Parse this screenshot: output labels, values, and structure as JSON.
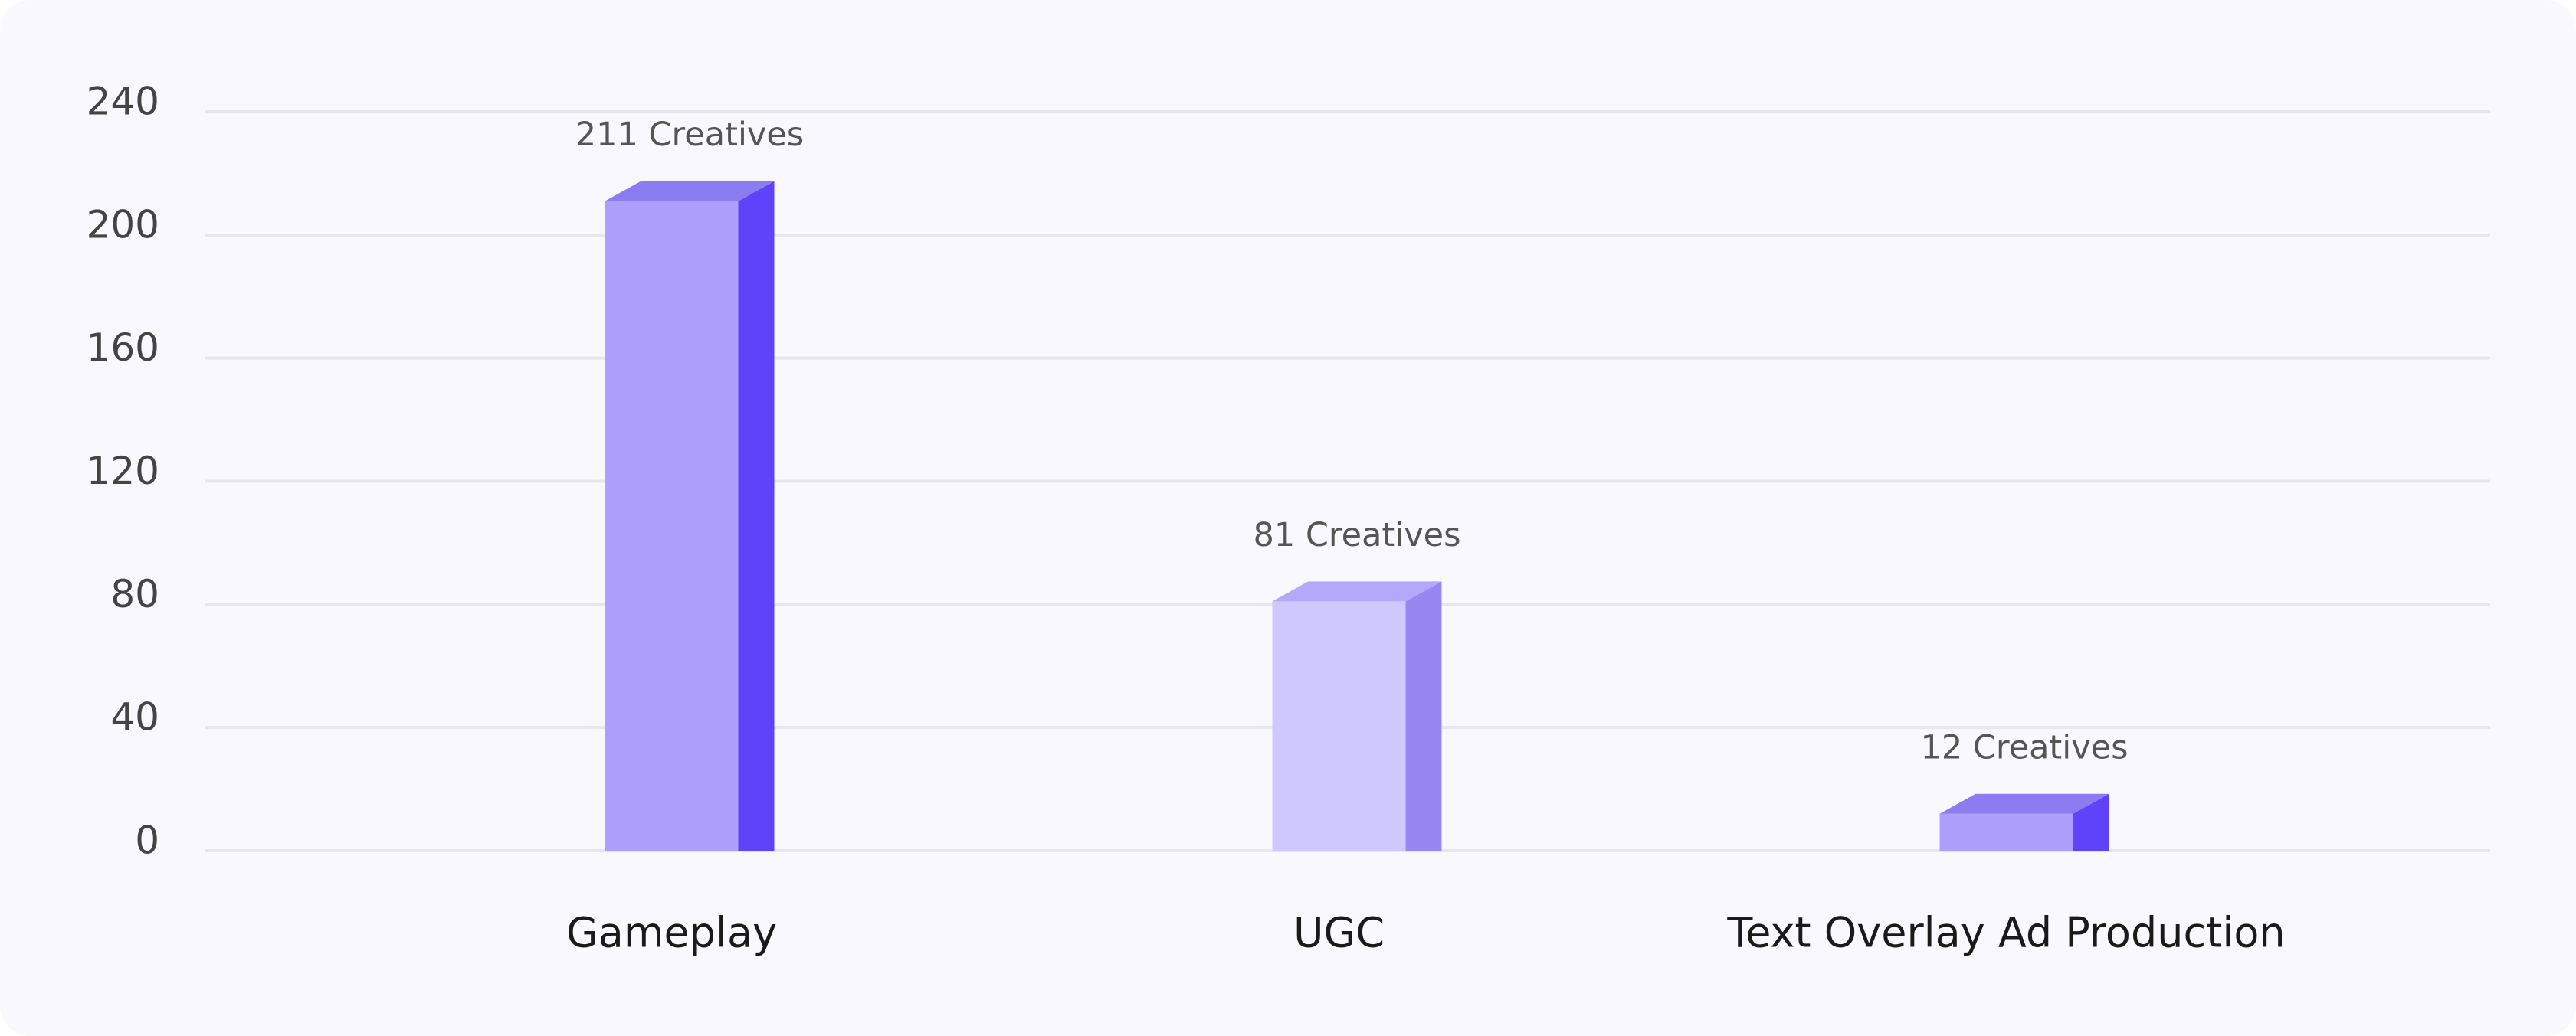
{
  "chart_data": {
    "type": "bar",
    "categories": [
      "Gameplay",
      "UGC",
      "Text Overlay Ad Production"
    ],
    "values": [
      211,
      81,
      12
    ],
    "value_labels": [
      "211 Creatives",
      "81 Creatives",
      "12 Creatives"
    ],
    "colors": [
      "#ae9ffd",
      "#cfc8fd",
      "#ae9ffd"
    ],
    "side_colors": [
      "#5e43fa",
      "#9887f3",
      "#5e43fa"
    ],
    "top_colors": [
      "#8c7cf2",
      "#b4a8fb",
      "#8c7cf2"
    ],
    "ylim": [
      0,
      240
    ],
    "yticks": [
      0,
      40,
      80,
      120,
      160,
      200,
      240
    ],
    "grid": true
  }
}
